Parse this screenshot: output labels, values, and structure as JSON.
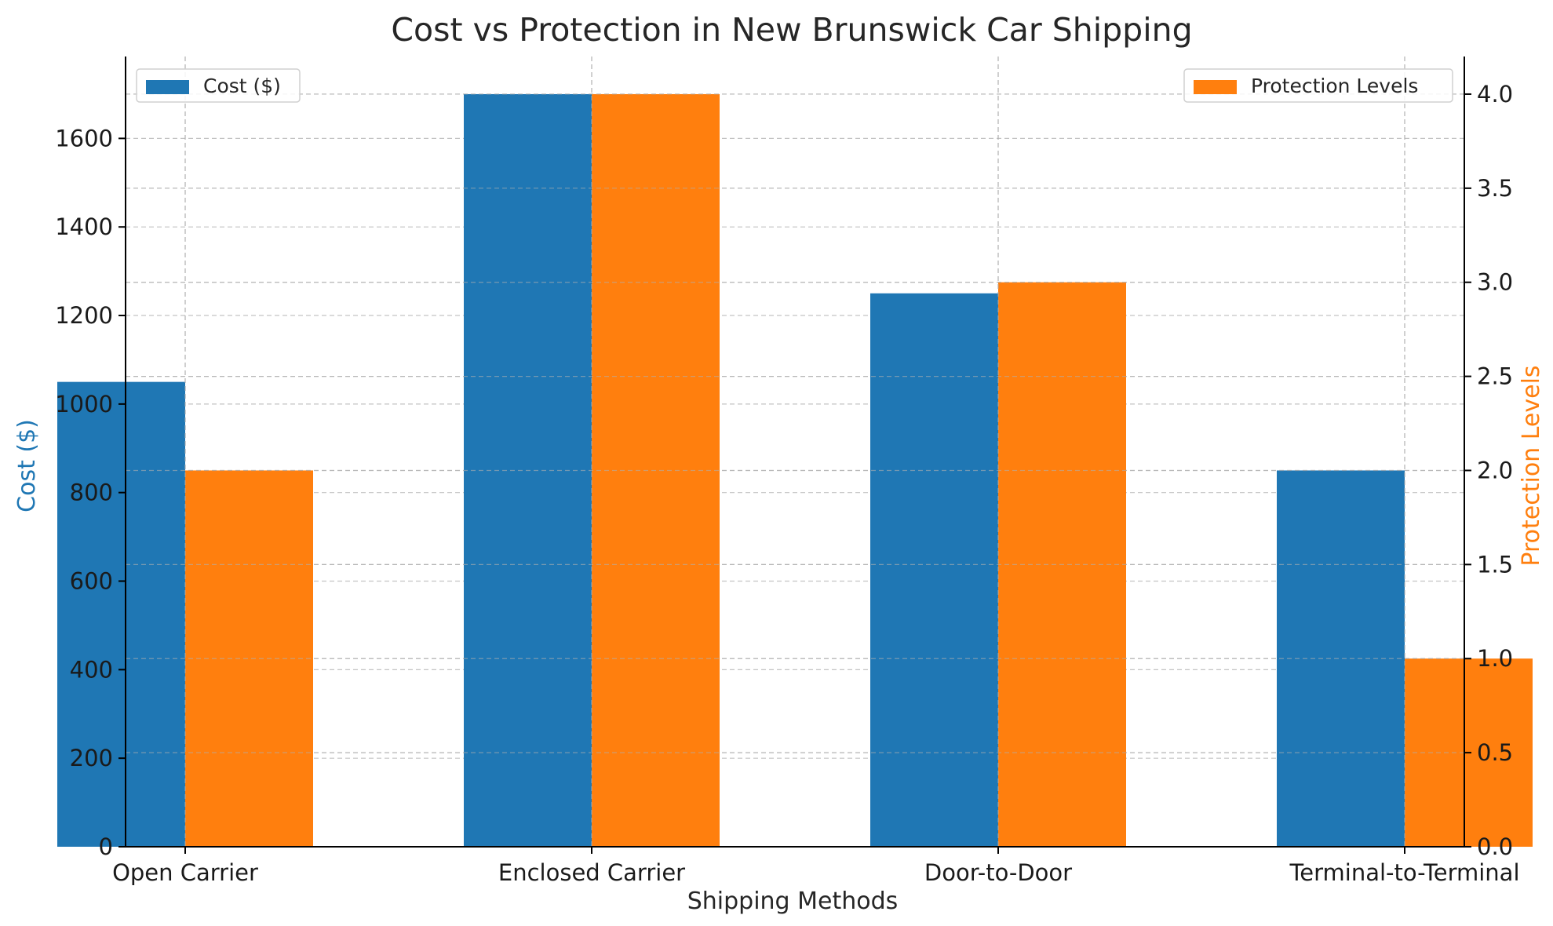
{
  "chart_data": {
    "type": "bar",
    "title": "Cost vs Protection in New Brunswick Car Shipping",
    "xlabel": "Shipping Methods",
    "ylabel_left": "Cost ($)",
    "ylabel_right": "Protection Levels",
    "categories": [
      "Open Carrier",
      "Enclosed Carrier",
      "Door-to-Door",
      "Terminal-to-Terminal"
    ],
    "series": [
      {
        "name": "Cost ($)",
        "axis": "left",
        "color": "#1f77b4",
        "values": [
          1050,
          1700,
          1250,
          850
        ]
      },
      {
        "name": "Protection Levels",
        "axis": "right",
        "color": "#ff7f0e",
        "values": [
          2,
          4,
          3,
          1
        ]
      }
    ],
    "ylim_left": [
      0,
      1785
    ],
    "ylim_right": [
      0,
      4.2
    ],
    "yticks_left": [
      "0",
      "200",
      "400",
      "600",
      "800",
      "1000",
      "1200",
      "1400",
      "1600"
    ],
    "yticks_right": [
      "0.0",
      "0.5",
      "1.0",
      "1.5",
      "2.0",
      "2.5",
      "3.0",
      "3.5",
      "4.0"
    ],
    "grid": true,
    "legend_left_placement": "top-left",
    "legend_right_placement": "top-right",
    "colors": {
      "left_axis_label": "#1f77b4",
      "right_axis_label": "#ff7f0e",
      "grid": "#b0b0b0"
    }
  }
}
